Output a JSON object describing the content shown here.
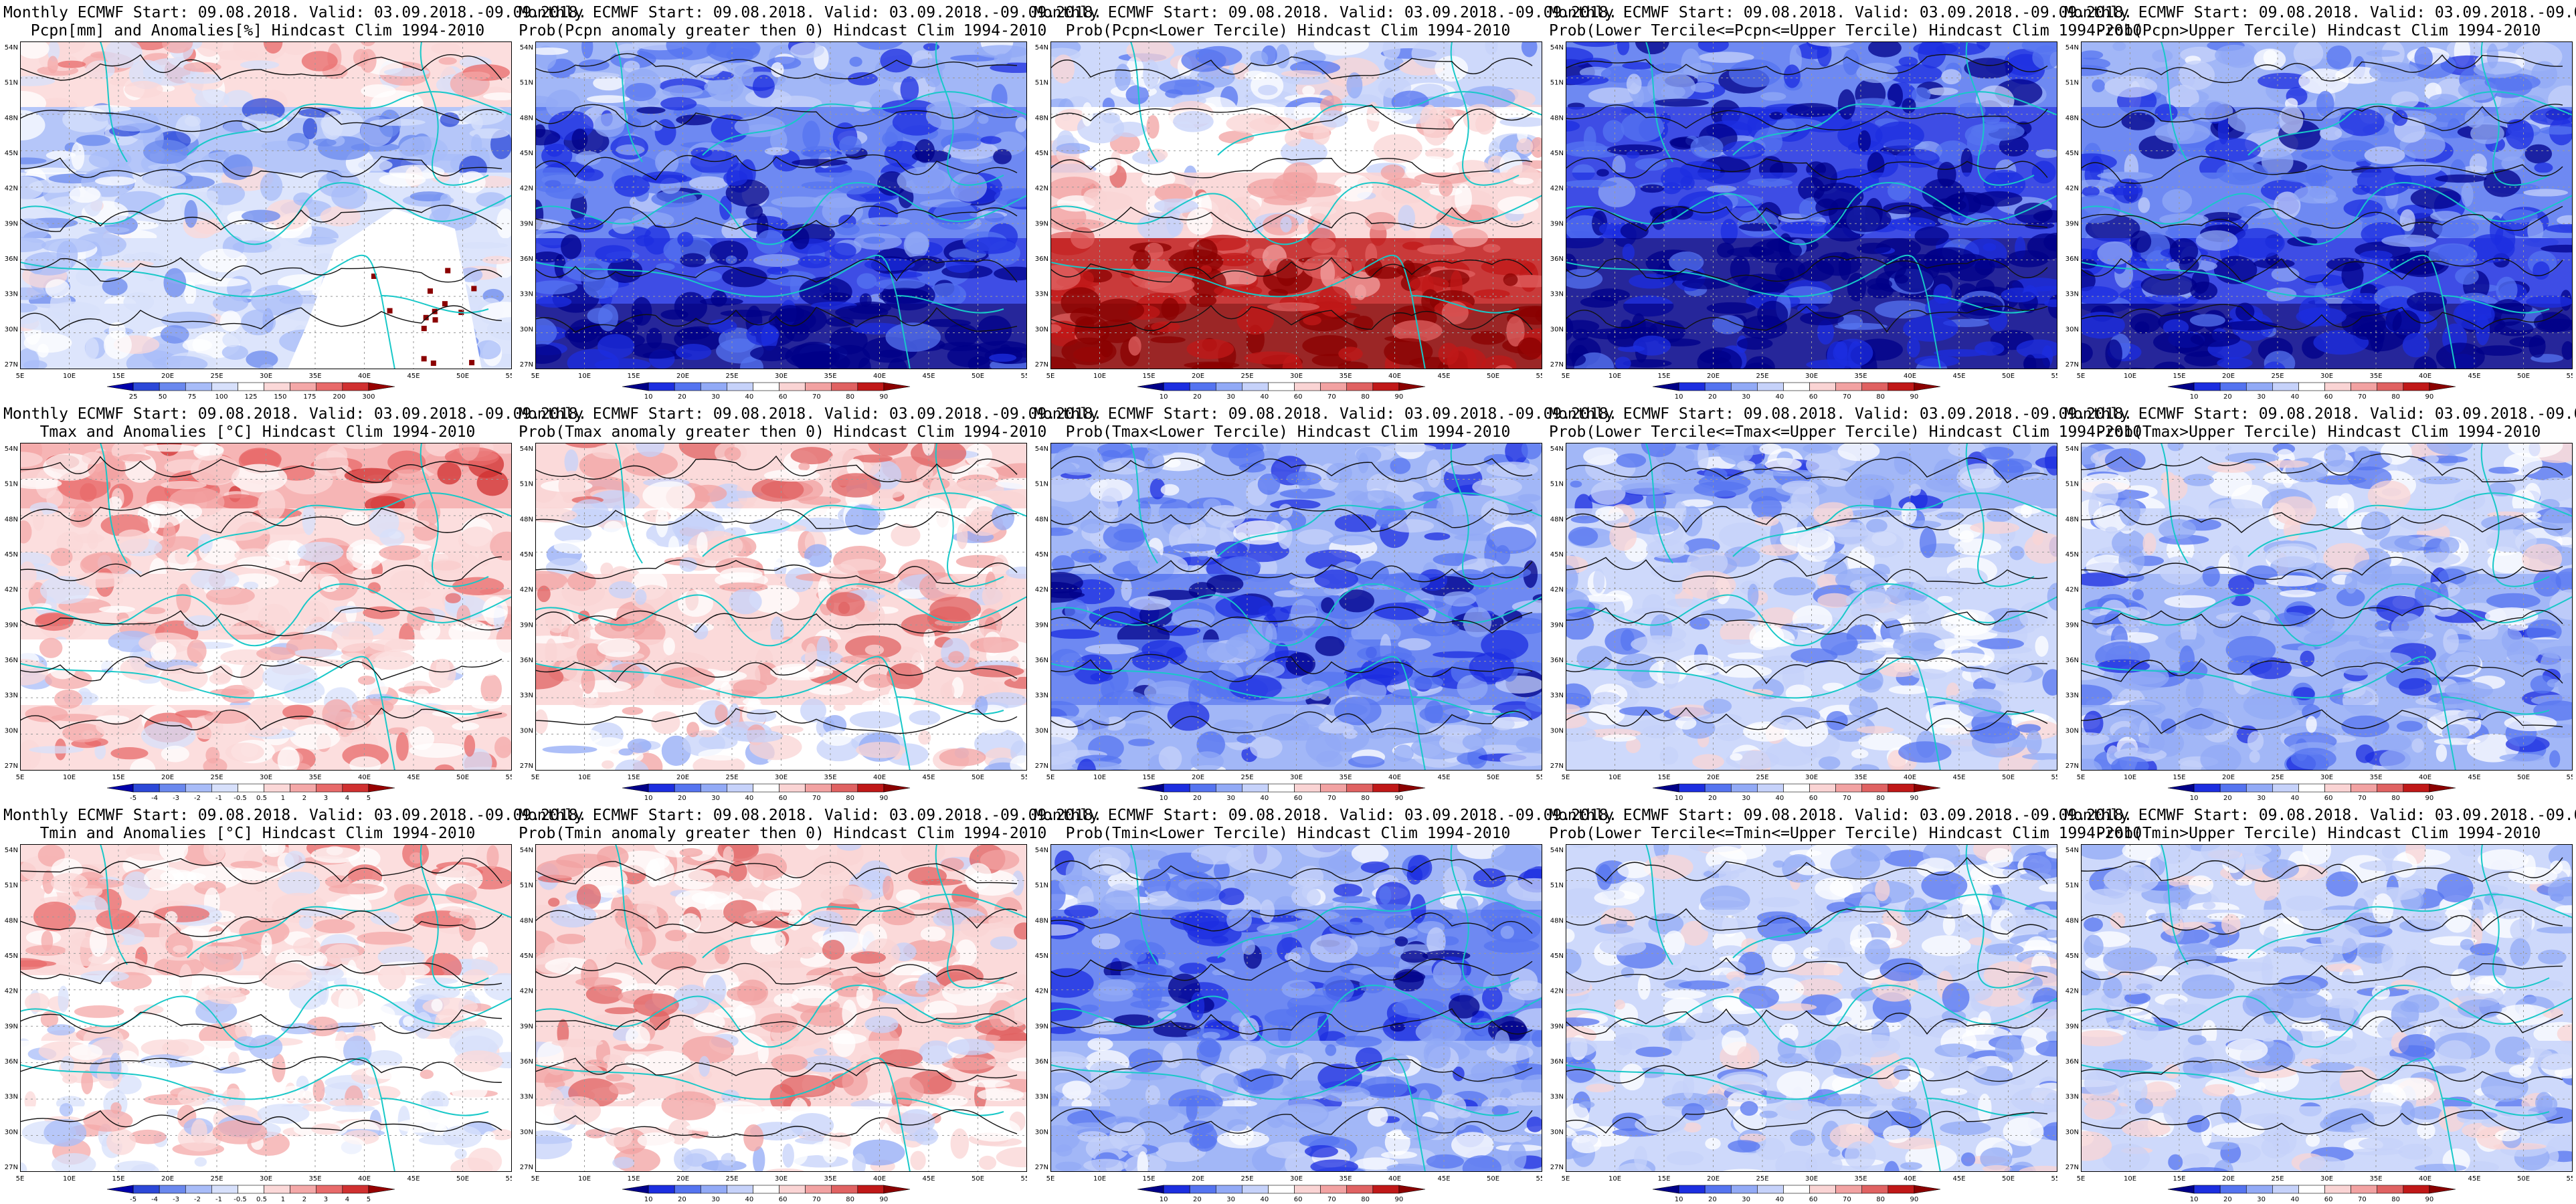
{
  "header_line": "Monthly ECMWF Start: 09.08.2018. Valid: 03.09.2018.-09.09.2018.",
  "lat_labels": [
    "54N",
    "51N",
    "48N",
    "45N",
    "42N",
    "39N",
    "36N",
    "33N",
    "30N",
    "27N"
  ],
  "lon_labels": [
    "5E",
    "10E",
    "15E",
    "20E",
    "25E",
    "30E",
    "35E",
    "40E",
    "45E",
    "50E",
    "55E"
  ],
  "palettes": {
    "anomaly": [
      "#0000aa",
      "#2c48d8",
      "#6a88ee",
      "#a8bcf8",
      "#d7e0fb",
      "#ffffff",
      "#fbd8d8",
      "#f4a8a8",
      "#e86a6a",
      "#d03030",
      "#960000"
    ],
    "probability": [
      "#000088",
      "#1c2ee0",
      "#5574f0",
      "#92aaf6",
      "#c6d2fa",
      "#ffffff",
      "#fad4d4",
      "#f2a2a2",
      "#e06262",
      "#c01818",
      "#8a0000"
    ]
  },
  "colorbars": {
    "precip": [
      "25",
      "50",
      "75",
      "100",
      "125",
      "150",
      "175",
      "200",
      "300"
    ],
    "temp": [
      "-5",
      "-4",
      "-3",
      "-2",
      "-1",
      "-0.5",
      "0.5",
      "1",
      "2",
      "3",
      "4",
      "5"
    ],
    "prob": [
      "10",
      "20",
      "30",
      "40",
      "60",
      "70",
      "80",
      "90"
    ]
  },
  "rows": [
    {
      "panels": [
        {
          "title": "Pcpn[mm] and Anomalies[%] Hindcast Clim 1994-2010",
          "palette": "anomaly",
          "colorbar": "precip",
          "fill_levels": [
            0.62,
            0.28,
            0.42,
            0.38,
            0.35
          ],
          "has_white_gap": true
        },
        {
          "title": "Prob(Pcpn anomaly greater then 0) Hindcast Clim 1994-2010",
          "palette": "probability",
          "colorbar": "prob",
          "fill_levels": [
            0.3,
            0.2,
            0.15,
            0.05,
            0.02
          ]
        },
        {
          "title": "Prob(Pcpn<Lower Tercile) Hindcast Clim 1994-2010",
          "palette": "probability",
          "colorbar": "prob",
          "fill_levels": [
            0.35,
            0.45,
            0.6,
            0.92,
            0.97
          ]
        },
        {
          "title": "Prob(Lower Tercile<=Pcpn<=Upper Tercile) Hindcast Clim 1994-2010",
          "palette": "probability",
          "colorbar": "prob",
          "fill_levels": [
            0.18,
            0.12,
            0.1,
            0.03,
            0.03
          ]
        },
        {
          "title": "Prob(Pcpn>Upper Tercile) Hindcast Clim 1994-2010",
          "palette": "probability",
          "colorbar": "prob",
          "fill_levels": [
            0.28,
            0.2,
            0.18,
            0.05,
            0.02
          ]
        }
      ]
    },
    {
      "panels": [
        {
          "title": "Tmax and Anomalies [°C] Hindcast Clim 1994-2010",
          "palette": "anomaly",
          "colorbar": "temp",
          "fill_levels": [
            0.7,
            0.58,
            0.55,
            0.54,
            0.56
          ]
        },
        {
          "title": "Prob(Tmax anomaly greater then 0) Hindcast Clim 1994-2010",
          "palette": "probability",
          "colorbar": "prob",
          "fill_levels": [
            0.58,
            0.52,
            0.62,
            0.6,
            0.5
          ]
        },
        {
          "title": "Prob(Tmax<Lower Tercile) Hindcast Clim 1994-2010",
          "palette": "probability",
          "colorbar": "prob",
          "fill_levels": [
            0.32,
            0.25,
            0.15,
            0.2,
            0.33
          ]
        },
        {
          "title": "Prob(Lower Tercile<=Tmax<=Upper Tercile) Hindcast Clim 1994-2010",
          "palette": "probability",
          "colorbar": "prob",
          "fill_levels": [
            0.3,
            0.38,
            0.4,
            0.42,
            0.4
          ]
        },
        {
          "title": "Prob(Tmax>Upper Tercile) Hindcast Clim 1994-2010",
          "palette": "probability",
          "colorbar": "prob",
          "fill_levels": [
            0.4,
            0.35,
            0.3,
            0.32,
            0.3
          ]
        }
      ]
    },
    {
      "panels": [
        {
          "title": "Tmin and Anomalies [°C] Hindcast Clim 1994-2010",
          "palette": "anomaly",
          "colorbar": "temp",
          "fill_levels": [
            0.58,
            0.56,
            0.54,
            0.53,
            0.52
          ]
        },
        {
          "title": "Prob(Tmin anomaly greater then 0) Hindcast Clim 1994-2010",
          "palette": "probability",
          "colorbar": "prob",
          "fill_levels": [
            0.6,
            0.58,
            0.62,
            0.55,
            0.5
          ]
        },
        {
          "title": "Prob(Tmin<Lower Tercile) Hindcast Clim 1994-2010",
          "palette": "probability",
          "colorbar": "prob",
          "fill_levels": [
            0.3,
            0.2,
            0.15,
            0.25,
            0.3
          ]
        },
        {
          "title": "Prob(Lower Tercile<=Tmin<=Upper Tercile) Hindcast Clim 1994-2010",
          "palette": "probability",
          "colorbar": "prob",
          "fill_levels": [
            0.35,
            0.38,
            0.4,
            0.42,
            0.4
          ]
        },
        {
          "title": "Prob(Tmin>Upper Tercile) Hindcast Clim 1994-2010",
          "palette": "probability",
          "colorbar": "prob",
          "fill_levels": [
            0.4,
            0.38,
            0.35,
            0.36,
            0.35
          ]
        }
      ]
    }
  ]
}
